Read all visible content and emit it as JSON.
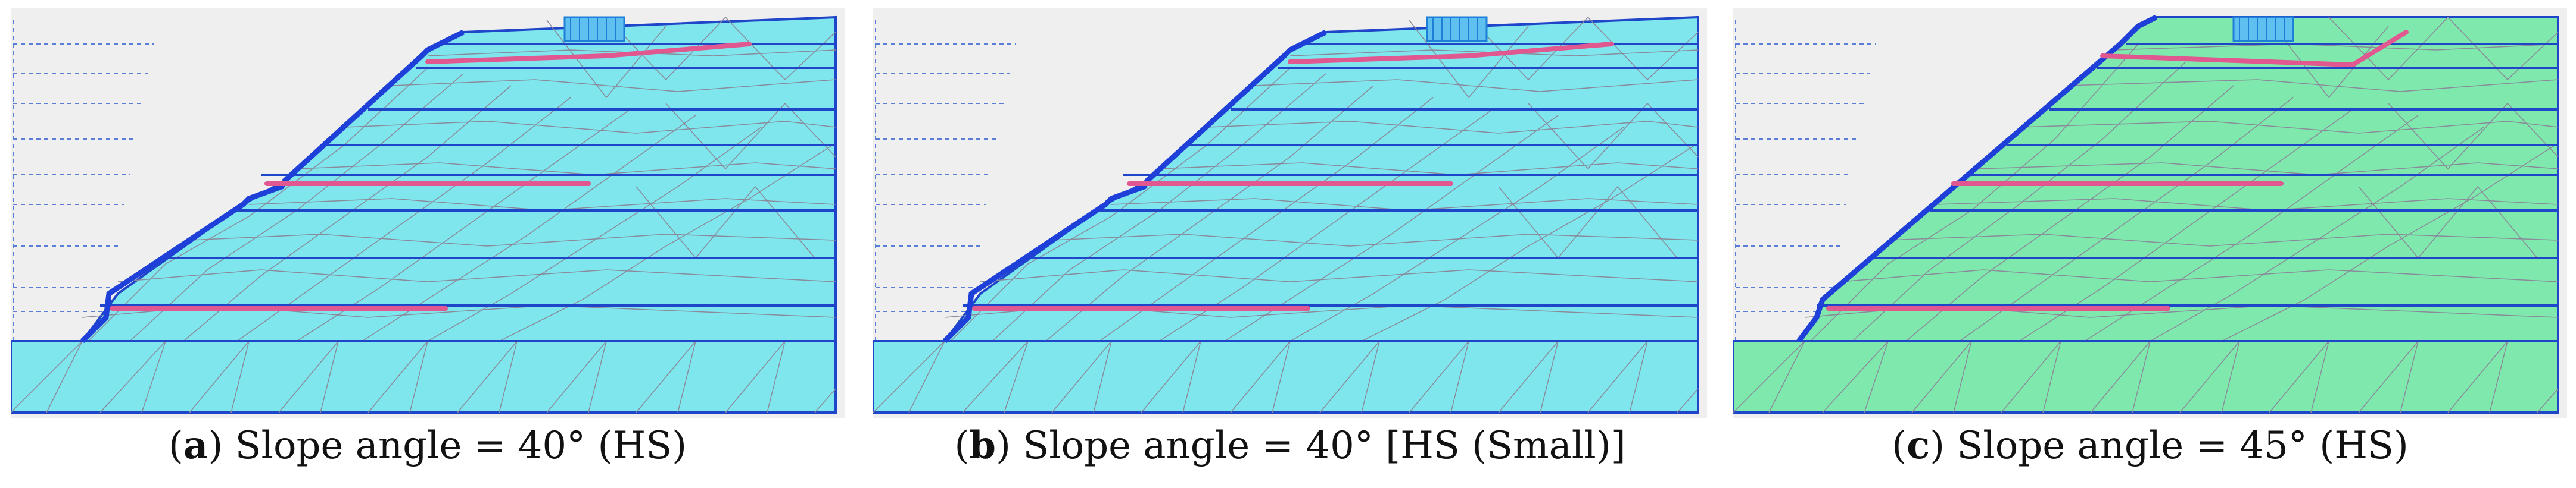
{
  "colors": {
    "background": "#efefef",
    "soil_hs": "#7fe6ee",
    "soil_hs_45": "#7fe8ad",
    "mesh": "#8a8a9a",
    "layer_lines": "#1f45c8",
    "slope_face": "#1f40d8",
    "reinforcement": "#e0588f",
    "load": "#1e7fd8",
    "dashed": "#5b7fd6"
  },
  "panels": [
    {
      "id": "a",
      "label": "a",
      "caption": "Slope angle = 40° (HS)",
      "soil": "soil_hs"
    },
    {
      "id": "b",
      "label": "b",
      "caption": "Slope angle = 40° [HS (Small)]",
      "soil": "soil_hs"
    },
    {
      "id": "c",
      "label": "c",
      "caption": "Slope angle = 45° (HS)",
      "soil": "soil_hs_45"
    }
  ]
}
